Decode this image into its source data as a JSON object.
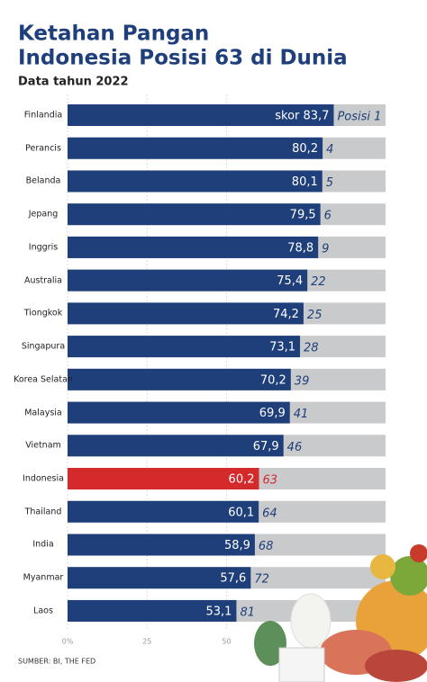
{
  "chart_data": {
    "type": "bar",
    "orientation": "horizontal",
    "title": "Ketahan Pangan",
    "title_line2": "Indonesia Posisi 63 di Dunia",
    "subtitle": "Data tahun 2022",
    "source": "SUMBER: BI, THE FED",
    "categories": [
      "Finlandia",
      "Perancis",
      "Belanda",
      "Jepang",
      "Inggris",
      "Australia",
      "Tiongkok",
      "Singapura",
      "Korea Selatan",
      "Malaysia",
      "Vietnam",
      "Indonesia",
      "Thailand",
      "India",
      "Myanmar",
      "Laos"
    ],
    "values": [
      83.7,
      80.2,
      80.1,
      79.5,
      78.8,
      75.4,
      74.2,
      73.1,
      70.2,
      69.9,
      67.9,
      60.2,
      60.1,
      58.9,
      57.6,
      53.1
    ],
    "value_labels": [
      "skor 83,7",
      "80,2",
      "80,1",
      "79,5",
      "78,8",
      "75,4",
      "74,2",
      "73,1",
      "70,2",
      "69,9",
      "67,9",
      "60,2",
      "60,1",
      "58,9",
      "57,6",
      "53,1"
    ],
    "ranks": [
      {
        "value": 1,
        "label": "Posisi 1"
      },
      4,
      5,
      6,
      9,
      22,
      25,
      28,
      39,
      41,
      46,
      63,
      64,
      68,
      72,
      81
    ],
    "color": "#1f3f7a",
    "highlight": "Indonesia",
    "highlight_color": "#d42a2c",
    "track_color": "#c9cacc",
    "xlim": [
      0,
      100
    ],
    "xticks": [
      {
        "value": 0,
        "label": "0%"
      },
      25,
      50
    ],
    "grid": true
  }
}
